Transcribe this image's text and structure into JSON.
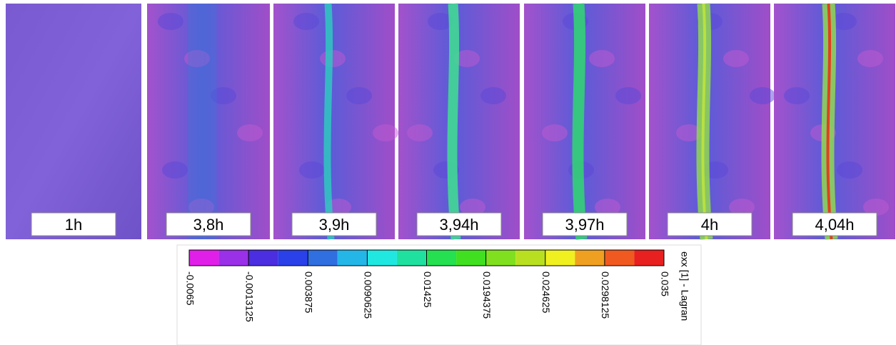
{
  "panels": [
    {
      "label": "1h"
    },
    {
      "label": "3,8h"
    },
    {
      "label": "3,9h"
    },
    {
      "label": "3,94h"
    },
    {
      "label": "3,97h"
    },
    {
      "label": "4h"
    },
    {
      "label": "4,04h"
    }
  ],
  "colorbar": {
    "title": "exx [1] - Lagran",
    "ticks": [
      "-0.0065",
      "-0.0013125",
      "0.003875",
      "0.0090625",
      "0.01425",
      "0.0194375",
      "0.024625",
      "0.0298125",
      "0.035"
    ],
    "colors": [
      "#e020e8",
      "#9a30e8",
      "#4a2ee0",
      "#2a40e8",
      "#2f6fe0",
      "#25b6e8",
      "#20e8e0",
      "#20e0a0",
      "#25e050",
      "#40e020",
      "#80e020",
      "#b8e020",
      "#f0f020",
      "#f0a020",
      "#f05a20",
      "#e82020"
    ]
  }
}
